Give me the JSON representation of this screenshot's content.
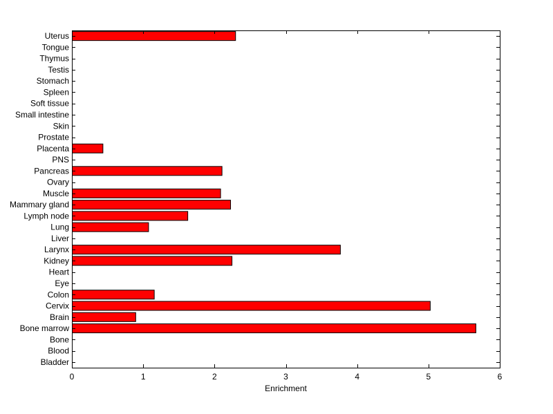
{
  "chart_data": {
    "type": "bar",
    "orientation": "horizontal",
    "title": "",
    "xlabel": "Enrichment",
    "ylabel": "",
    "xlim": [
      0,
      6
    ],
    "x_ticks": [
      0,
      1,
      2,
      3,
      4,
      5,
      6
    ],
    "x_tick_labels": [
      "0",
      "1",
      "2",
      "3",
      "4",
      "5",
      "6"
    ],
    "grid": false,
    "legend": "none",
    "bar_color": "#ff0000",
    "bar_edge_color": "#000000",
    "categories": [
      "Bladder",
      "Blood",
      "Bone",
      "Bone marrow",
      "Brain",
      "Cervix",
      "Colon",
      "Eye",
      "Heart",
      "Kidney",
      "Larynx",
      "Liver",
      "Lung",
      "Lymph node",
      "Mammary gland",
      "Muscle",
      "Ovary",
      "Pancreas",
      "PNS",
      "Placenta",
      "Prostate",
      "Skin",
      "Small intestine",
      "Soft tissue",
      "Spleen",
      "Stomach",
      "Testis",
      "Thymus",
      "Tongue",
      "Uterus"
    ],
    "values": [
      0,
      0,
      0,
      5.66,
      0.89,
      5.02,
      1.15,
      0,
      0,
      2.24,
      3.76,
      0,
      1.07,
      1.62,
      2.22,
      2.08,
      0,
      2.1,
      0,
      0.43,
      0,
      0,
      0,
      0,
      0,
      0,
      0,
      0,
      0,
      2.29
    ]
  }
}
